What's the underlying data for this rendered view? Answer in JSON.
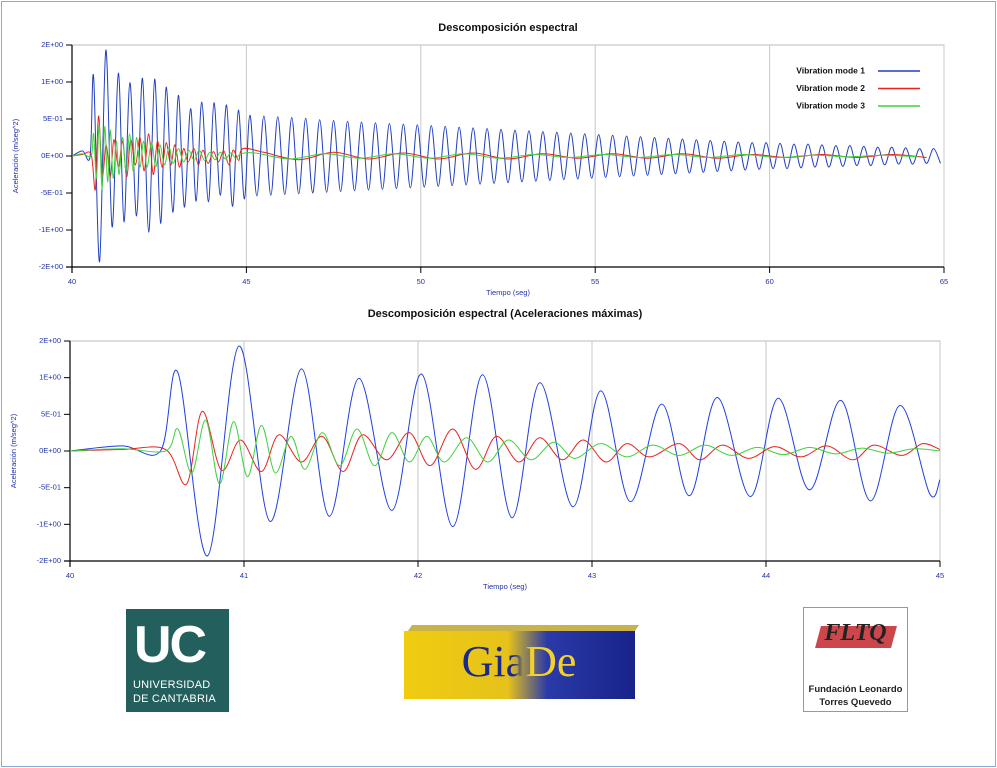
{
  "chart_data": [
    {
      "type": "line",
      "title": "Descomposición espectral",
      "x_label": "Tiempo (seg)",
      "y_label": "Aceleración (m/seg^2)",
      "xlim": [
        40,
        65
      ],
      "xticks": [
        40,
        45,
        50,
        55,
        60,
        65
      ],
      "ylim": [
        -1.5,
        1.5
      ],
      "yticks": [
        {
          "value": 1.5,
          "label": "2E+00"
        },
        {
          "value": 1,
          "label": "1E+00"
        },
        {
          "value": 0.5,
          "label": "5E-01"
        },
        {
          "value": 0,
          "label": "0E+00"
        },
        {
          "value": -0.5,
          "label": "-5E-01"
        },
        {
          "value": -1,
          "label": "-1E+00"
        },
        {
          "value": -1.5,
          "label": "-2E+00"
        }
      ],
      "grid": true,
      "legend": "upper right",
      "series": [
        {
          "name": "Vibration mode 1",
          "color": "#1f3fbf",
          "x": [
            40,
            40.3,
            40.52,
            40.62,
            40.79,
            40.97,
            41.15,
            41.33,
            41.49,
            41.66,
            41.85,
            42.02,
            42.2,
            42.37,
            42.54,
            42.7,
            42.89,
            43.05,
            43.22,
            43.4,
            43.56,
            43.72,
            43.91,
            44.07,
            44.25,
            44.43,
            44.6,
            44.77,
            44.94,
            45.1,
            45.3,
            45.5,
            45.7,
            45.9,
            46.1,
            46.3,
            46.5,
            46.7,
            46.9,
            47.1,
            47.3,
            47.5,
            47.7,
            47.9,
            48.1,
            48.3,
            48.5,
            48.7,
            48.9,
            49.1,
            49.3,
            49.5,
            49.7,
            49.9,
            50.1,
            50.3,
            50.5,
            50.7,
            50.9,
            51.1,
            51.3,
            51.5,
            51.7,
            51.9,
            52.1,
            52.3,
            52.5,
            52.7,
            52.9,
            53.1,
            53.3,
            53.5,
            53.7,
            53.9,
            54.1,
            54.3,
            54.5,
            54.7,
            54.9,
            55.1,
            55.3,
            55.5,
            55.7,
            55.9,
            56.1,
            56.3,
            56.5,
            56.7,
            56.9,
            57.1,
            57.3,
            57.5,
            57.7,
            57.9,
            58.1,
            58.3,
            58.5,
            58.7,
            58.9,
            59.1,
            59.3,
            59.5,
            59.7,
            59.9,
            60.1,
            60.3,
            60.5,
            60.7,
            60.9,
            61.1,
            61.3,
            61.5,
            61.7,
            61.9,
            62.1,
            62.3,
            62.5,
            62.7,
            62.9,
            63.1,
            63.3,
            63.5,
            63.7,
            63.9,
            64.1,
            64.3,
            64.5,
            64.7,
            64.9
          ],
          "values": [
            0,
            0.07,
            0,
            1.07,
            -1.43,
            1.43,
            -0.96,
            1.12,
            -0.89,
            0.99,
            -0.81,
            1.05,
            -1.03,
            1.04,
            -0.91,
            0.93,
            -0.76,
            0.82,
            -0.69,
            0.64,
            -0.61,
            0.73,
            -0.62,
            0.72,
            -0.53,
            0.69,
            -0.68,
            0.62,
            -0.58,
            0.55,
            -0.54,
            0.54,
            -0.53,
            0.53,
            -0.52,
            0.52,
            -0.51,
            0.51,
            -0.5,
            0.49,
            -0.49,
            0.48,
            -0.48,
            0.47,
            -0.47,
            0.46,
            -0.46,
            0.45,
            -0.45,
            0.44,
            -0.44,
            0.43,
            -0.43,
            0.42,
            -0.42,
            0.41,
            -0.41,
            0.4,
            -0.4,
            0.39,
            -0.39,
            0.38,
            -0.38,
            0.37,
            -0.37,
            0.36,
            -0.36,
            0.35,
            -0.35,
            0.34,
            -0.34,
            0.33,
            -0.33,
            0.32,
            -0.32,
            0.31,
            -0.31,
            0.3,
            -0.3,
            0.29,
            -0.29,
            0.28,
            -0.28,
            0.27,
            -0.27,
            0.26,
            -0.26,
            0.25,
            -0.25,
            0.24,
            -0.24,
            0.23,
            -0.23,
            0.22,
            -0.22,
            0.21,
            -0.21,
            0.2,
            -0.2,
            0.19,
            -0.19,
            0.18,
            -0.18,
            0.18,
            -0.17,
            0.17,
            -0.17,
            0.16,
            -0.16,
            0.16,
            -0.15,
            0.15,
            -0.15,
            0.14,
            -0.14,
            0.14,
            -0.13,
            0.13,
            -0.13,
            0.12,
            -0.12,
            0.12,
            -0.11,
            0.11,
            -0.11,
            0.1,
            -0.1,
            0.1,
            -0.1
          ]
        },
        {
          "name": "Vibration mode 2",
          "color": "#e8231f",
          "x": [
            40,
            40.3,
            40.55,
            40.67,
            40.76,
            40.87,
            40.98,
            41.1,
            41.2,
            41.33,
            41.45,
            41.57,
            41.68,
            41.82,
            41.95,
            42.07,
            42.2,
            42.33,
            42.45,
            42.58,
            42.7,
            42.83,
            42.95,
            43.08,
            43.2,
            43.33,
            43.5,
            43.62,
            43.75,
            43.9,
            44.05,
            44.2,
            44.35,
            44.5,
            44.62,
            44.78,
            44.9,
            45.5,
            46.5,
            47.5,
            48.5,
            49.5,
            50.5,
            51.5,
            52.5,
            53.5,
            54.5,
            55.5,
            56.5,
            57.5,
            58.5,
            59.5,
            60.5,
            61.5,
            62.5,
            63.5,
            64.5
          ],
          "values": [
            0,
            0.02,
            0.02,
            -0.45,
            0.54,
            -0.26,
            0.15,
            -0.28,
            0.22,
            -0.15,
            0.2,
            -0.28,
            0.22,
            -0.12,
            0.25,
            -0.2,
            0.3,
            -0.25,
            0.2,
            -0.15,
            0.18,
            -0.12,
            0.15,
            -0.15,
            0.1,
            -0.08,
            0.1,
            -0.12,
            0.08,
            -0.1,
            0.06,
            -0.08,
            0.07,
            -0.12,
            0.08,
            -0.06,
            0.1,
            0.05,
            -0.05,
            0.05,
            -0.04,
            0.04,
            -0.04,
            0.04,
            -0.04,
            0.03,
            -0.03,
            0.03,
            -0.03,
            0.03,
            -0.03,
            0.02,
            -0.02,
            0.02,
            -0.02,
            0.02,
            -0.02
          ]
        },
        {
          "name": "Vibration mode 3",
          "color": "#3fd23f",
          "x": [
            40,
            40.3,
            40.55,
            40.62,
            40.7,
            40.78,
            40.86,
            40.94,
            41.02,
            41.1,
            41.18,
            41.27,
            41.35,
            41.45,
            41.55,
            41.65,
            41.75,
            41.85,
            41.95,
            42.05,
            42.15,
            42.28,
            42.4,
            42.52,
            42.65,
            42.78,
            42.9,
            43.05,
            43.2,
            43.35,
            43.5,
            43.65,
            43.8,
            43.95,
            44.1,
            44.25,
            44.4,
            44.55,
            44.7,
            44.85,
            45.25,
            46.25,
            47.25,
            48.25,
            49.25,
            50.25,
            51.25,
            52.25,
            53.25,
            54.25,
            55.25,
            56.25,
            57.25,
            58.25,
            59.25,
            60.25,
            61.25,
            62.25,
            63.25,
            64.25
          ],
          "values": [
            0,
            0.03,
            0,
            0.3,
            -0.3,
            0.42,
            -0.45,
            0.4,
            -0.35,
            0.35,
            -0.3,
            0.2,
            -0.25,
            0.25,
            -0.2,
            0.3,
            -0.2,
            0.25,
            -0.15,
            0.2,
            -0.15,
            0.18,
            -0.15,
            0.15,
            -0.12,
            0.12,
            -0.1,
            0.1,
            -0.08,
            0.08,
            -0.06,
            0.08,
            -0.06,
            0.05,
            -0.05,
            0.05,
            -0.04,
            0.04,
            -0.03,
            0.03,
            0.04,
            -0.04,
            0.03,
            -0.03,
            0.03,
            -0.03,
            0.03,
            -0.03,
            0.02,
            -0.02,
            0.02,
            -0.02,
            0.02,
            -0.02,
            0.02,
            -0.02,
            0.01,
            -0.01,
            0.01,
            -0.01
          ]
        }
      ]
    },
    {
      "type": "line",
      "title": "Descomposición espectral (Aceleraciones máximas)",
      "x_label": "Tiempo (seg)",
      "y_label": "Aceleración (m/seg^2)",
      "xlim": [
        40,
        45
      ],
      "xticks": [
        40,
        41,
        42,
        43,
        44,
        45
      ],
      "ylim": [
        -1.5,
        1.5
      ],
      "yticks": [
        {
          "value": 1.5,
          "label": "2E+00"
        },
        {
          "value": 1,
          "label": "1E+00"
        },
        {
          "value": 0.5,
          "label": "5E-01"
        },
        {
          "value": 0,
          "label": "0E+00"
        },
        {
          "value": -0.5,
          "label": "-5E-01"
        },
        {
          "value": -1,
          "label": "-1E+00"
        },
        {
          "value": -1.5,
          "label": "-2E+00"
        }
      ],
      "grid": true,
      "series": [
        {
          "color": "#1f3fdf",
          "x": [
            40,
            40.3,
            40.52,
            40.62,
            40.79,
            40.97,
            41.15,
            41.33,
            41.49,
            41.66,
            41.85,
            42.02,
            42.2,
            42.37,
            42.54,
            42.7,
            42.89,
            43.05,
            43.22,
            43.4,
            43.56,
            43.72,
            43.91,
            44.07,
            44.25,
            44.43,
            44.6,
            44.77,
            44.94,
            45
          ],
          "values": [
            0,
            0.07,
            0,
            1.07,
            -1.43,
            1.43,
            -0.96,
            1.12,
            -0.89,
            0.99,
            -0.81,
            1.05,
            -1.03,
            1.04,
            -0.91,
            0.93,
            -0.76,
            0.82,
            -0.69,
            0.64,
            -0.61,
            0.73,
            -0.62,
            0.72,
            -0.53,
            0.69,
            -0.68,
            0.62,
            -0.58,
            -0.39
          ]
        },
        {
          "color": "#e8231f",
          "x": [
            40,
            40.3,
            40.55,
            40.67,
            40.76,
            40.87,
            40.98,
            41.1,
            41.2,
            41.33,
            41.45,
            41.57,
            41.68,
            41.82,
            41.95,
            42.07,
            42.2,
            42.33,
            42.45,
            42.58,
            42.7,
            42.83,
            42.95,
            43.08,
            43.2,
            43.33,
            43.5,
            43.62,
            43.75,
            43.9,
            44.05,
            44.2,
            44.35,
            44.5,
            44.62,
            44.78,
            44.9,
            45
          ],
          "values": [
            0,
            0.02,
            0.02,
            -0.45,
            0.54,
            -0.26,
            0.15,
            -0.28,
            0.22,
            -0.15,
            0.2,
            -0.28,
            0.22,
            -0.12,
            0.25,
            -0.2,
            0.3,
            -0.25,
            0.2,
            -0.15,
            0.18,
            -0.12,
            0.15,
            -0.15,
            0.1,
            -0.08,
            0.1,
            -0.12,
            0.08,
            -0.1,
            0.06,
            -0.08,
            0.07,
            -0.12,
            0.08,
            -0.06,
            0.1,
            0.02
          ]
        },
        {
          "color": "#3fd23f",
          "x": [
            40,
            40.3,
            40.55,
            40.62,
            40.7,
            40.78,
            40.86,
            40.94,
            41.02,
            41.1,
            41.18,
            41.27,
            41.35,
            41.45,
            41.55,
            41.65,
            41.75,
            41.85,
            41.95,
            42.05,
            42.15,
            42.28,
            42.4,
            42.52,
            42.65,
            42.78,
            42.9,
            43.05,
            43.2,
            43.35,
            43.5,
            43.65,
            43.8,
            43.95,
            44.1,
            44.25,
            44.4,
            44.55,
            44.7,
            44.85,
            45
          ],
          "values": [
            0,
            0.03,
            0,
            0.3,
            -0.3,
            0.42,
            -0.45,
            0.4,
            -0.35,
            0.35,
            -0.3,
            0.2,
            -0.25,
            0.25,
            -0.2,
            0.3,
            -0.2,
            0.25,
            -0.15,
            0.2,
            -0.15,
            0.18,
            -0.15,
            0.15,
            -0.12,
            0.12,
            -0.1,
            0.1,
            -0.08,
            0.08,
            -0.06,
            0.08,
            -0.06,
            0.05,
            -0.05,
            0.05,
            -0.04,
            0.04,
            -0.03,
            0.03,
            0
          ]
        }
      ]
    }
  ],
  "logos": {
    "uc": {
      "mark": "UC",
      "line1": "UNIVERSIDAD",
      "line2": "DE CANTABRIA"
    },
    "giade": "GiaDe",
    "fltq": {
      "mark": "FLTQ",
      "line1": "Fundación Leonardo",
      "line2": "Torres Quevedo"
    }
  }
}
